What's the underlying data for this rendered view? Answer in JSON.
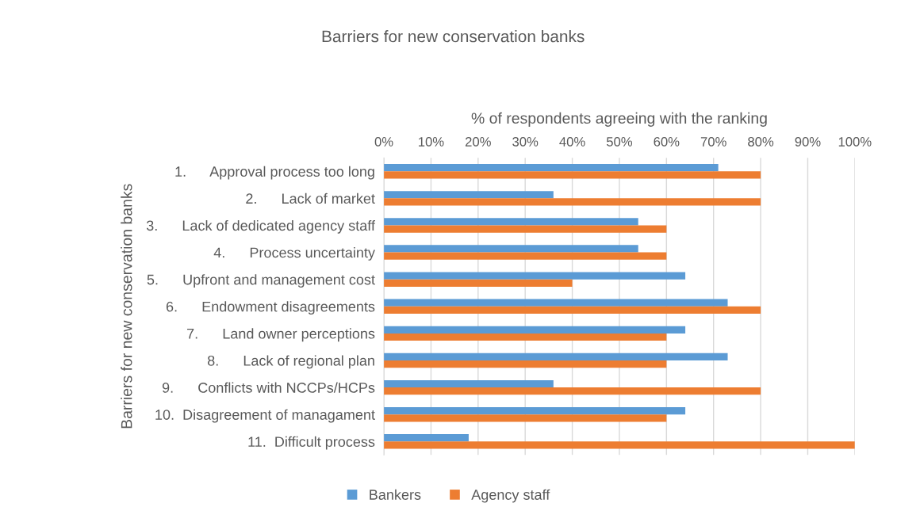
{
  "chart_data": {
    "type": "bar",
    "orientation": "horizontal",
    "title": "Barriers for new conservation banks",
    "xlabel": "% of respondents agreeing with the ranking",
    "ylabel": "Barriers for new conservation banks",
    "categories": [
      "1.      Approval process too long",
      "2.      Lack of market",
      "3.      Lack of dedicated agency staff",
      "4.      Process uncertainty",
      "5.      Upfront and management cost",
      "6.      Endowment disagreements",
      "7.      Land owner perceptions",
      "8.      Lack of regional plan",
      "9.      Conflicts with NCCPs/HCPs",
      "10.  Disagreement of managament",
      "11.  Difficult process"
    ],
    "series": [
      {
        "name": "Bankers",
        "color": "#5b9bd5",
        "values": [
          71,
          36,
          54,
          54,
          64,
          73,
          64,
          73,
          36,
          64,
          18
        ]
      },
      {
        "name": "Agency staff",
        "color": "#ed7d31",
        "values": [
          80,
          80,
          60,
          60,
          40,
          80,
          60,
          60,
          80,
          60,
          100
        ]
      }
    ],
    "xlim": [
      0,
      100
    ],
    "xticks": [
      {
        "value": 0,
        "label": "0%"
      },
      {
        "value": 10,
        "label": "10%"
      },
      {
        "value": 20,
        "label": "20%"
      },
      {
        "value": 30,
        "label": "30%"
      },
      {
        "value": 40,
        "label": "40%"
      },
      {
        "value": 50,
        "label": "50%"
      },
      {
        "value": 60,
        "label": "60%"
      },
      {
        "value": 70,
        "label": "70%"
      },
      {
        "value": 80,
        "label": "80%"
      },
      {
        "value": 90,
        "label": "90%"
      },
      {
        "value": 100,
        "label": "100%"
      }
    ],
    "grid": "x",
    "legend": "bottom"
  }
}
